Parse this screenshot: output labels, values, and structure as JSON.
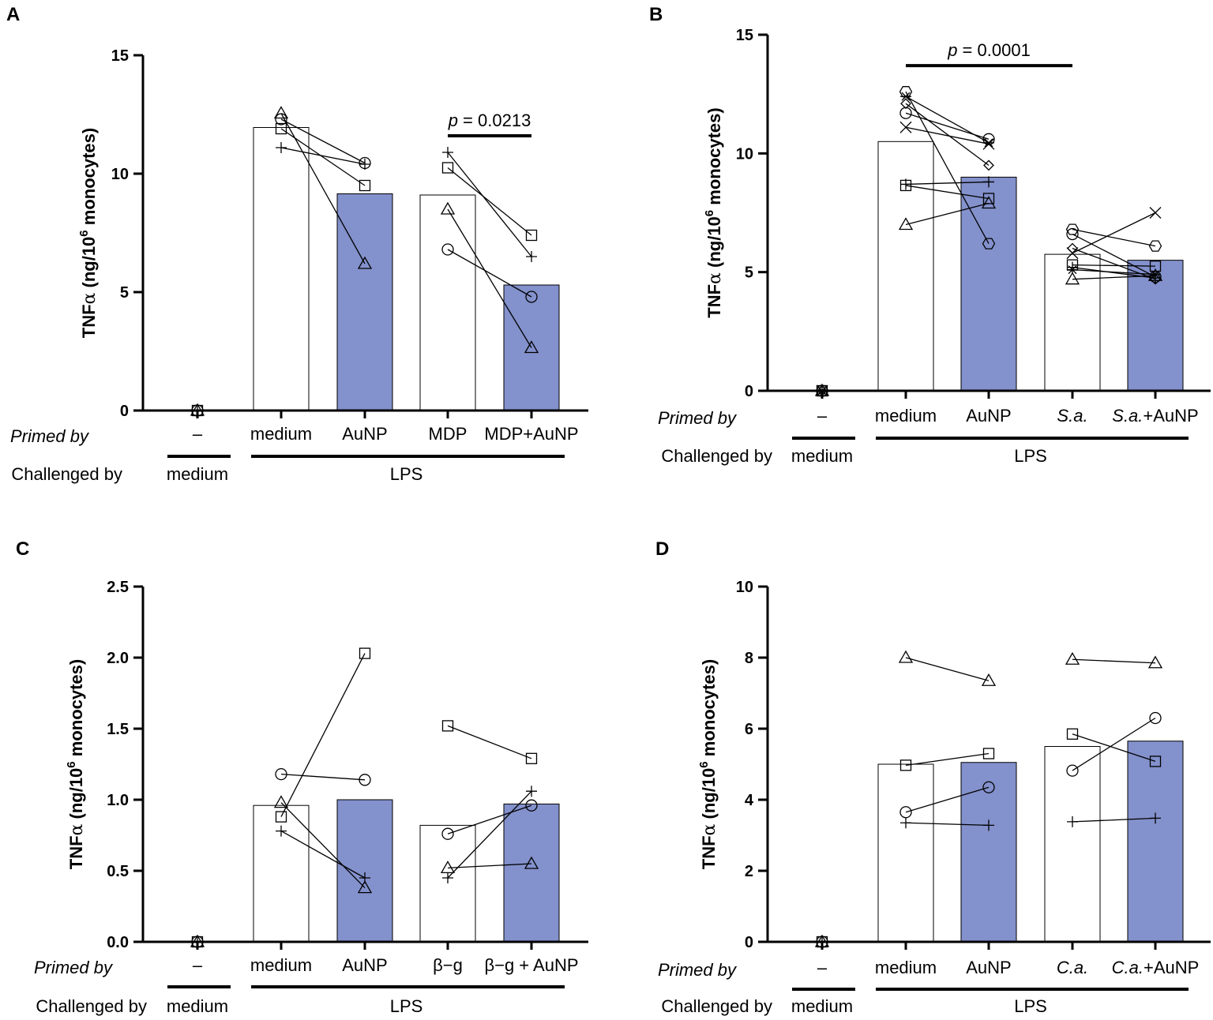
{
  "colors": {
    "accent_bar": "#8391cc",
    "plain_bar": "#ffffff",
    "ink": "#000000"
  },
  "chart_data": [
    {
      "panel": "A",
      "type": "bar",
      "ylabel": "TNFα (ng/10⁶ monocytes)",
      "ylabel_parts": {
        "a": "TNF",
        "alpha": "α",
        "b": " (ng/10",
        "sup": "6",
        "c": " monocytes)"
      },
      "ylim": [
        0,
        15
      ],
      "yticks": [
        0,
        5,
        10,
        15
      ],
      "yticklabels": [
        "0",
        "5",
        "10",
        "15"
      ],
      "primed_label": "Primed by",
      "challenged_label": "Challenged by",
      "categories": [
        {
          "label": "–",
          "bar": null,
          "filled": false
        },
        {
          "label": "medium",
          "bar": 11.95,
          "filled": false
        },
        {
          "label": "AuNP",
          "bar": 9.15,
          "filled": true
        },
        {
          "label": "MDP",
          "bar": 9.1,
          "filled": false
        },
        {
          "label": "MDP+AuNP",
          "bar": 5.3,
          "filled": true
        }
      ],
      "challenge_groups": [
        {
          "label": "medium",
          "from": 0,
          "to": 0
        },
        {
          "label": "LPS",
          "from": 1,
          "to": 4
        }
      ],
      "donors": [
        {
          "marker": "triangle",
          "values": [
            0,
            12.55,
            6.2,
            8.5,
            2.65
          ]
        },
        {
          "marker": "circle",
          "values": [
            0,
            12.3,
            10.45,
            6.8,
            4.8
          ]
        },
        {
          "marker": "square",
          "values": [
            0,
            11.9,
            9.5,
            10.25,
            7.4
          ]
        },
        {
          "marker": "plus",
          "values": [
            0,
            11.1,
            10.4,
            10.9,
            6.5
          ]
        }
      ],
      "links": [
        [
          1,
          2
        ],
        [
          3,
          4
        ]
      ],
      "significance": [
        {
          "from": 3,
          "to": 4,
          "y": 11.6,
          "p_symbol": "p",
          "p_text": " = 0.0213"
        }
      ]
    },
    {
      "panel": "B",
      "type": "bar",
      "ylabel": "TNFα (ng/10⁶ monocytes)",
      "ylabel_parts": {
        "a": "TNF",
        "alpha": "α",
        "b": " (ng/10",
        "sup": "6",
        "c": " monocytes)"
      },
      "ylim": [
        0,
        15
      ],
      "yticks": [
        0,
        5,
        10,
        15
      ],
      "yticklabels": [
        "0",
        "5",
        "10",
        "15"
      ],
      "primed_label": "Primed by",
      "challenged_label": "Challenged by",
      "categories": [
        {
          "label": "–",
          "bar": null,
          "filled": false
        },
        {
          "label": "medium",
          "bar": 10.5,
          "filled": false
        },
        {
          "label": "AuNP",
          "bar": 9.0,
          "filled": true
        },
        {
          "label": "S.a.",
          "label_italic": "S.a.",
          "label_rest": "",
          "bar": 5.75,
          "filled": false
        },
        {
          "label": "S.a.+AuNP",
          "label_italic": "S.a.",
          "label_rest": "+AuNP",
          "bar": 5.5,
          "filled": true
        }
      ],
      "challenge_groups": [
        {
          "label": "medium",
          "from": 0,
          "to": 0
        },
        {
          "label": "LPS",
          "from": 1,
          "to": 4
        }
      ],
      "donors": [
        {
          "marker": "hexagon",
          "values": [
            0,
            12.6,
            6.2,
            6.8,
            6.1
          ]
        },
        {
          "marker": "circle",
          "values": [
            0,
            11.7,
            10.6,
            6.6,
            4.8
          ]
        },
        {
          "marker": "x",
          "values": [
            0,
            11.1,
            10.4,
            5.8,
            7.5
          ]
        },
        {
          "marker": "diamond",
          "values": [
            0,
            12.1,
            9.5,
            6.0,
            4.7
          ]
        },
        {
          "marker": "asterisk",
          "values": [
            0,
            12.4,
            10.45,
            5.1,
            4.9
          ]
        },
        {
          "marker": "square",
          "values": [
            0,
            8.65,
            8.1,
            5.3,
            5.25
          ]
        },
        {
          "marker": "plus",
          "values": [
            0,
            8.7,
            8.8,
            5.2,
            4.75
          ]
        },
        {
          "marker": "triangle",
          "values": [
            0,
            7.0,
            7.9,
            4.7,
            4.85
          ]
        }
      ],
      "links": [
        [
          1,
          2
        ],
        [
          3,
          4
        ]
      ],
      "significance": [
        {
          "from": 1,
          "to": 3,
          "y": 13.7,
          "p_symbol": "p",
          "p_text": " = 0.0001"
        }
      ]
    },
    {
      "panel": "C",
      "type": "bar",
      "ylabel": "TNFα (ng/10⁶ monocytes)",
      "ylabel_parts": {
        "a": "TNF",
        "alpha": "α",
        "b": " (ng/10",
        "sup": "6",
        "c": " monocytes)"
      },
      "ylim": [
        0,
        2.5
      ],
      "yticks": [
        0,
        0.5,
        1.0,
        1.5,
        2.0,
        2.5
      ],
      "yticklabels": [
        "0.0",
        "0.5",
        "1.0",
        "1.5",
        "2.0",
        "2.5"
      ],
      "primed_label": "Primed by",
      "challenged_label": "Challenged by",
      "categories": [
        {
          "label": "–",
          "bar": null,
          "filled": false
        },
        {
          "label": "medium",
          "bar": 0.96,
          "filled": false
        },
        {
          "label": "AuNP",
          "bar": 1.0,
          "filled": true
        },
        {
          "label": "β−g",
          "bar": 0.82,
          "filled": false
        },
        {
          "label": "β−g + AuNP",
          "bar": 0.97,
          "filled": true
        }
      ],
      "challenge_groups": [
        {
          "label": "medium",
          "from": 0,
          "to": 0
        },
        {
          "label": "LPS",
          "from": 1,
          "to": 4
        }
      ],
      "donors": [
        {
          "marker": "circle",
          "values": [
            0,
            1.18,
            1.14,
            0.76,
            0.96
          ]
        },
        {
          "marker": "square",
          "values": [
            0,
            0.88,
            2.03,
            1.52,
            1.29
          ]
        },
        {
          "marker": "triangle",
          "values": [
            0,
            0.98,
            0.38,
            0.52,
            0.55
          ]
        },
        {
          "marker": "plus",
          "values": [
            0,
            0.78,
            0.45,
            0.45,
            1.06
          ]
        }
      ],
      "links": [
        [
          1,
          2
        ],
        [
          3,
          4
        ]
      ],
      "significance": []
    },
    {
      "panel": "D",
      "type": "bar",
      "ylabel": "TNFα (ng/10⁶ monocytes)",
      "ylabel_parts": {
        "a": "TNF",
        "alpha": "α",
        "b": " (ng/10",
        "sup": "6",
        "c": " monocytes)"
      },
      "ylim": [
        0,
        10
      ],
      "yticks": [
        0,
        2,
        4,
        6,
        8,
        10
      ],
      "yticklabels": [
        "0",
        "2",
        "4",
        "6",
        "8",
        "10"
      ],
      "primed_label": "Primed by",
      "challenged_label": "Challenged by",
      "categories": [
        {
          "label": "–",
          "bar": null,
          "filled": false
        },
        {
          "label": "medium",
          "bar": 5.0,
          "filled": false
        },
        {
          "label": "AuNP",
          "bar": 5.05,
          "filled": true
        },
        {
          "label": "C.a.",
          "label_italic": "C.a.",
          "label_rest": "",
          "bar": 5.5,
          "filled": false
        },
        {
          "label": "C.a.+AuNP",
          "label_italic": "C.a.",
          "label_rest": "+AuNP",
          "bar": 5.65,
          "filled": true
        }
      ],
      "challenge_groups": [
        {
          "label": "medium",
          "from": 0,
          "to": 0
        },
        {
          "label": "LPS",
          "from": 1,
          "to": 4
        }
      ],
      "donors": [
        {
          "marker": "triangle",
          "values": [
            0,
            8.0,
            7.35,
            7.95,
            7.85
          ]
        },
        {
          "marker": "square",
          "values": [
            0,
            4.97,
            5.3,
            5.85,
            5.08
          ]
        },
        {
          "marker": "circle",
          "values": [
            0,
            3.65,
            4.35,
            4.82,
            6.3
          ]
        },
        {
          "marker": "plus",
          "values": [
            0,
            3.35,
            3.28,
            3.38,
            3.48
          ]
        }
      ],
      "links": [
        [
          1,
          2
        ],
        [
          3,
          4
        ]
      ],
      "significance": []
    }
  ]
}
